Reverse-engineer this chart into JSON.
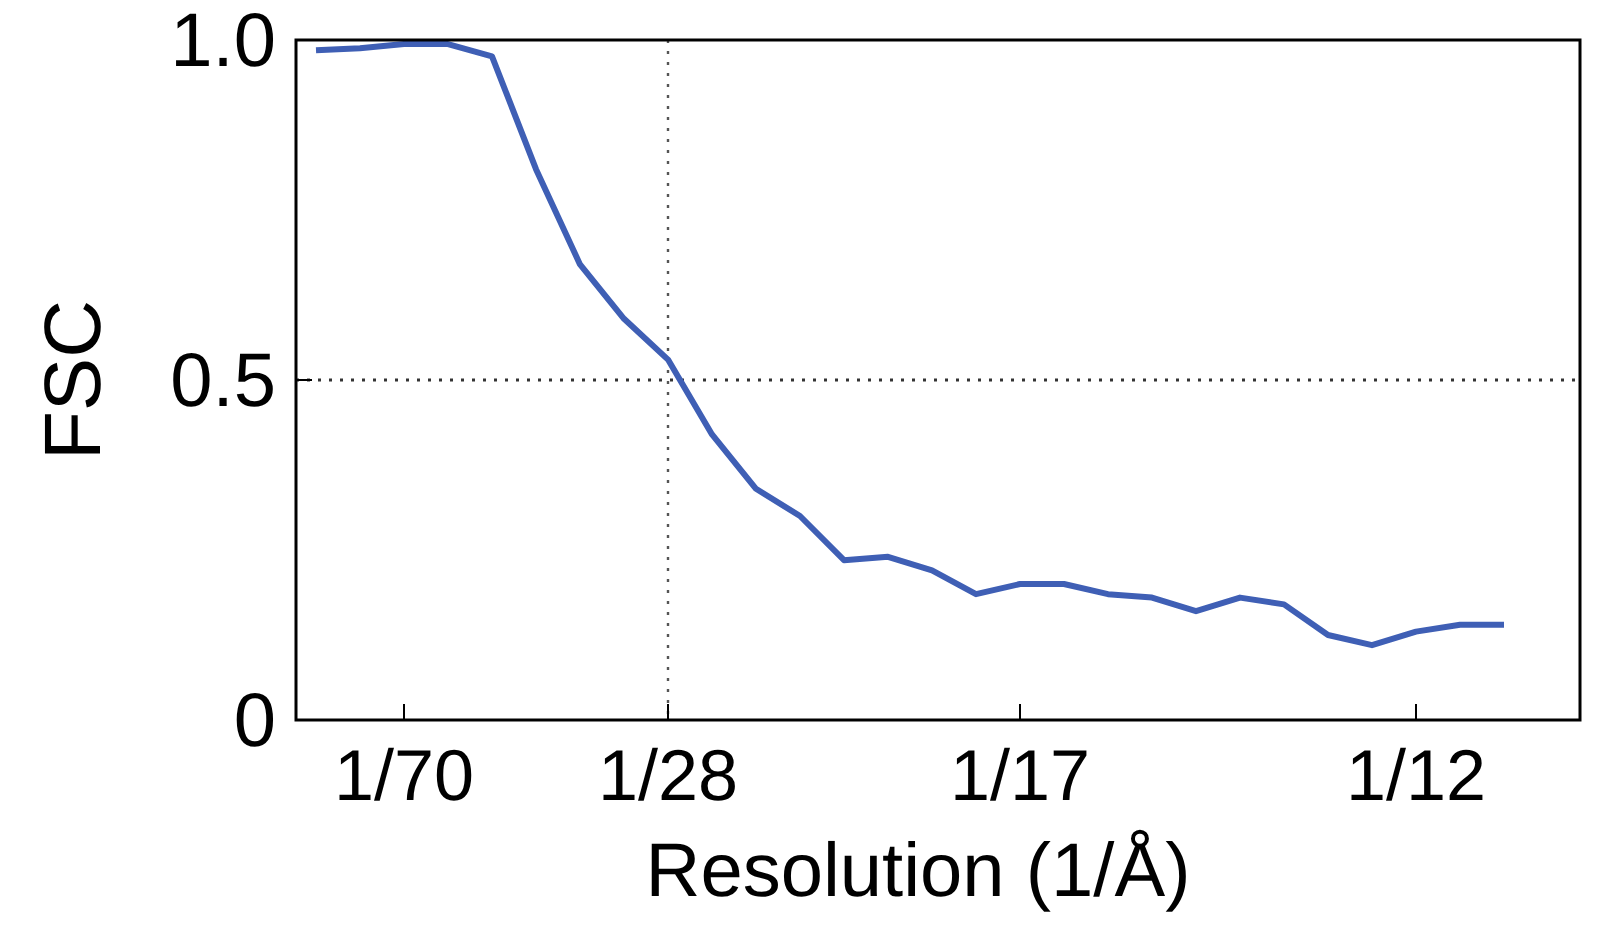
{
  "chart_data": {
    "type": "line",
    "xlabel": "Resolution (1/Å)",
    "ylabel": "FSC",
    "categories": [
      null,
      null,
      "1/70",
      null,
      null,
      null,
      null,
      null,
      "1/28",
      null,
      null,
      null,
      null,
      null,
      null,
      null,
      "1/17",
      null,
      null,
      null,
      null,
      null,
      null,
      null,
      null,
      "1/12",
      null,
      null
    ],
    "series": [
      {
        "color": "#3f5fb5",
        "values": [
          0.985,
          0.988,
          0.994,
          0.994,
          0.976,
          0.81,
          0.67,
          0.59,
          0.53,
          0.42,
          0.34,
          0.3,
          0.235,
          0.24,
          0.22,
          0.185,
          0.2,
          0.2,
          0.185,
          0.18,
          0.16,
          0.18,
          0.17,
          0.125,
          0.11,
          0.13,
          0.14,
          0.14
        ]
      }
    ],
    "ylim": [
      0,
      1
    ],
    "yticks": [
      0,
      {
        "value": 0.5,
        "label": "0.5"
      },
      {
        "value": 1,
        "label": "1.0"
      }
    ],
    "ref_lines": [
      {
        "axis": "y",
        "value": 0.5,
        "line_style": "dotted"
      },
      {
        "axis": "x",
        "value": "1/28",
        "line_style": "dotted"
      }
    ],
    "marker": "none",
    "line_style": "solid",
    "grid": false
  }
}
